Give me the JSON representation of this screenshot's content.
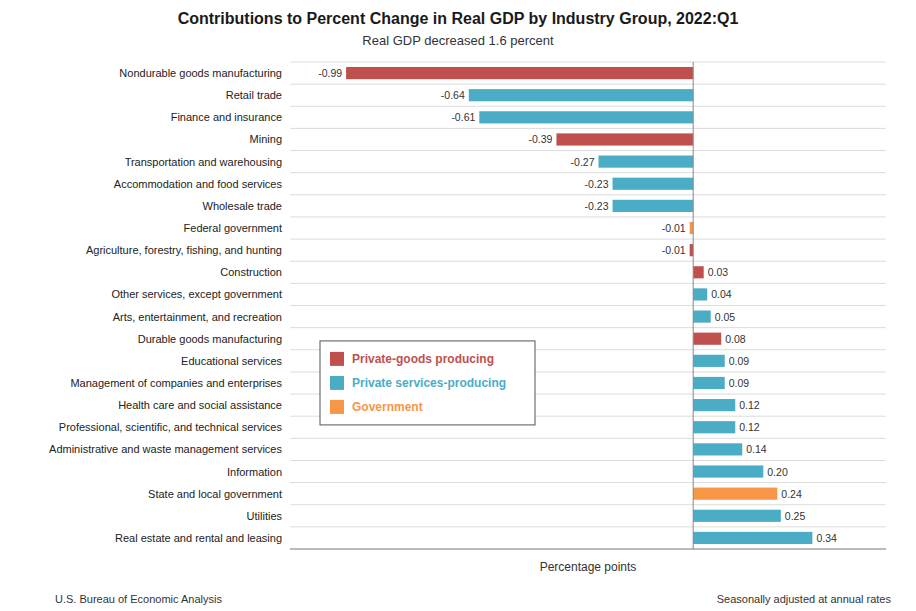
{
  "chart_data": {
    "type": "bar",
    "orientation": "horizontal",
    "title": "Contributions to Percent Change in Real GDP by Industry Group, 2022:Q1",
    "subtitle": "Real GDP decreased 1.6 percent",
    "xlabel": "Percentage points",
    "annotations": [
      "U.S. Bureau of Economic Analysis",
      "Seasonally adjusted at annual rates"
    ],
    "categories": [
      "Nondurable goods manufacturing",
      "Retail trade",
      "Finance and insurance",
      "Mining",
      "Transportation and warehousing",
      "Accommodation and food services",
      "Wholesale trade",
      "Federal government",
      "Agriculture, forestry, fishing, and hunting",
      "Construction",
      "Other services, except government",
      "Arts, entertainment, and recreation",
      "Durable goods manufacturing",
      "Educational services",
      "Management of companies and enterprises",
      "Health care and social assistance",
      "Professional, scientific, and technical services",
      "Administrative and waste management services",
      "Information",
      "State and local government",
      "Utilities",
      "Real estate and rental and leasing"
    ],
    "values": [
      -0.99,
      -0.64,
      -0.61,
      -0.39,
      -0.27,
      -0.23,
      -0.23,
      -0.01,
      -0.01,
      0.03,
      0.04,
      0.05,
      0.08,
      0.09,
      0.09,
      0.12,
      0.12,
      0.14,
      0.2,
      0.24,
      0.25,
      0.34
    ],
    "value_labels": [
      "-0.99",
      "-0.64",
      "-0.61",
      "-0.39",
      "-0.27",
      "-0.23",
      "-0.23",
      "-0.01",
      "-0.01",
      "0.03",
      "0.04",
      "0.05",
      "0.08",
      "0.09",
      "0.09",
      "0.12",
      "0.12",
      "0.14",
      "0.20",
      "0.24",
      "0.25",
      "0.34"
    ],
    "colors": [
      "#C0504D",
      "#4BACC6",
      "#4BACC6",
      "#C0504D",
      "#4BACC6",
      "#4BACC6",
      "#4BACC6",
      "#F79646",
      "#C0504D",
      "#C0504D",
      "#4BACC6",
      "#4BACC6",
      "#C0504D",
      "#4BACC6",
      "#4BACC6",
      "#4BACC6",
      "#4BACC6",
      "#4BACC6",
      "#4BACC6",
      "#F79646",
      "#4BACC6",
      "#4BACC6"
    ],
    "legend": "left",
    "legend_items": [
      {
        "name": "Private-goods producing",
        "color": "#C0504D"
      },
      {
        "name": "Private services-producing",
        "color": "#4BACC6"
      },
      {
        "name": "Government",
        "color": "#F79646"
      }
    ],
    "xlim": [
      -1.15,
      0.55
    ],
    "xticks": [],
    "grid": false,
    "data_labels": true,
    "tick_labels": "y"
  }
}
